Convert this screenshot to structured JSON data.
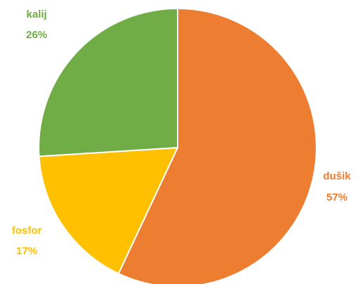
{
  "chart_data": {
    "type": "pie",
    "title": "",
    "slices": [
      {
        "label": "dušik",
        "percent_text": "57%",
        "value": 57,
        "color": "#ED7D31"
      },
      {
        "label": "fosfor",
        "percent_text": "17%",
        "value": 17,
        "color": "#FFC000"
      },
      {
        "label": "kalij",
        "percent_text": "26%",
        "value": 26,
        "color": "#70AD47"
      }
    ],
    "start_angle": "12 o'clock",
    "direction": "clockwise",
    "slice_border_color": "#ffffff",
    "legend": "none"
  }
}
